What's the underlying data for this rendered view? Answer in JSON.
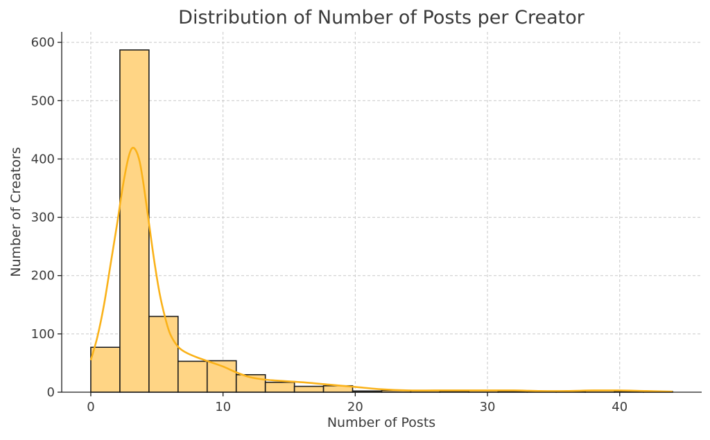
{
  "chart_data": {
    "type": "bar",
    "title": "Distribution of Number of Posts per Creator",
    "xlabel": "Number of Posts",
    "ylabel": "Number of Creators",
    "xlim": [
      -2.2,
      46.2
    ],
    "ylim": [
      0,
      618
    ],
    "xticks": [
      0,
      10,
      20,
      30,
      40
    ],
    "yticks": [
      0,
      100,
      200,
      300,
      400,
      500,
      600
    ],
    "grid": true,
    "bins": {
      "edges": [
        0,
        2.2,
        4.4,
        6.6,
        8.8,
        11.0,
        13.2,
        15.4,
        17.6,
        19.8,
        22.0,
        24.2,
        26.4,
        28.6,
        30.8,
        33.0,
        35.2,
        37.4,
        39.6,
        41.8,
        44.0
      ],
      "counts": [
        77,
        587,
        130,
        53,
        54,
        30,
        17,
        10,
        11,
        2,
        3,
        3,
        2,
        3,
        1,
        1,
        1,
        3,
        1,
        1
      ]
    },
    "kde": {
      "x": [
        0,
        0.5,
        1,
        1.5,
        2,
        2.4,
        2.8,
        3.1,
        3.4,
        3.7,
        4.0,
        4.4,
        4.8,
        5.2,
        5.6,
        6.0,
        6.6,
        7.2,
        8.0,
        9.0,
        10.0,
        11.0,
        12.0,
        13.0,
        14.0,
        16.0,
        18.0,
        20.0,
        22.0,
        24.0,
        26.0,
        28.0,
        30.0,
        32.0,
        34.0,
        36.0,
        38.0,
        40.0,
        42.0,
        44.0
      ],
      "y": [
        55,
        95,
        150,
        220,
        290,
        350,
        398,
        418,
        415,
        395,
        355,
        290,
        225,
        170,
        130,
        100,
        78,
        68,
        60,
        52,
        44,
        34,
        26,
        22,
        20,
        17,
        13,
        9,
        5,
        3,
        3,
        3,
        3,
        3,
        2,
        2,
        3,
        3,
        2,
        1
      ]
    }
  }
}
